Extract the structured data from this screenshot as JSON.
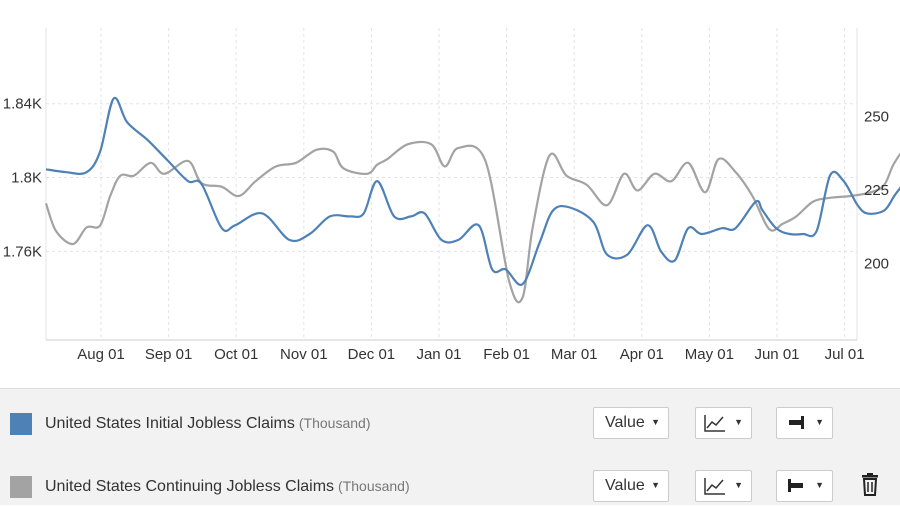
{
  "chart_data": {
    "type": "line",
    "title": "",
    "x_ticks": [
      "Aug 01",
      "Sep 01",
      "Oct 01",
      "Nov 01",
      "Dec 01",
      "Jan 01",
      "Feb 01",
      "Mar 01",
      "Apr 01",
      "May 01",
      "Jun 01",
      "Jul 01"
    ],
    "y_left": {
      "ticks": [
        1760,
        1800,
        1840
      ],
      "tick_labels": [
        "1.76K",
        "1.8K",
        "1.84K"
      ],
      "range": [
        1712,
        1881
      ]
    },
    "y_right": {
      "ticks": [
        200,
        225,
        250
      ],
      "tick_labels": [
        "200",
        "225",
        "250"
      ],
      "range": [
        174,
        280
      ]
    },
    "grid": true,
    "series": [
      {
        "name": "United States Initial Jobless Claims",
        "unit": "(Thousand)",
        "color": "#4e81b5",
        "axis": "right",
        "points": [
          [
            0,
            232
          ],
          [
            0.3,
            231
          ],
          [
            0.6,
            231
          ],
          [
            0.8,
            238
          ],
          [
            1.0,
            256
          ],
          [
            1.2,
            248
          ],
          [
            1.5,
            242
          ],
          [
            1.8,
            235
          ],
          [
            2.1,
            228
          ],
          [
            2.3,
            227
          ],
          [
            2.6,
            212
          ],
          [
            2.8,
            213
          ],
          [
            3.2,
            217
          ],
          [
            3.6,
            208
          ],
          [
            3.9,
            210
          ],
          [
            4.2,
            216
          ],
          [
            4.5,
            216
          ],
          [
            4.7,
            217
          ],
          [
            4.9,
            228
          ],
          [
            5.15,
            216
          ],
          [
            5.4,
            216
          ],
          [
            5.6,
            217
          ],
          [
            5.85,
            208
          ],
          [
            6.1,
            208
          ],
          [
            6.4,
            213
          ],
          [
            6.6,
            198
          ],
          [
            6.8,
            198
          ],
          [
            7.05,
            193
          ],
          [
            7.3,
            207
          ],
          [
            7.5,
            218
          ],
          [
            7.75,
            219
          ],
          [
            8.1,
            214
          ],
          [
            8.3,
            203
          ],
          [
            8.6,
            203
          ],
          [
            8.9,
            213
          ],
          [
            9.1,
            204
          ],
          [
            9.3,
            201
          ],
          [
            9.5,
            212
          ],
          [
            9.7,
            210
          ],
          [
            10.0,
            212
          ],
          [
            10.2,
            212
          ],
          [
            10.5,
            221
          ],
          [
            10.6,
            218
          ],
          [
            10.8,
            212
          ],
          [
            11.0,
            210
          ],
          [
            11.2,
            210
          ],
          [
            11.4,
            211
          ],
          [
            11.6,
            230
          ],
          [
            11.8,
            228
          ],
          [
            12.0,
            220
          ],
          [
            12.15,
            217
          ],
          [
            12.4,
            218
          ],
          [
            12.55,
            223
          ],
          [
            12.75,
            230
          ],
          [
            13.0,
            245
          ],
          [
            13.2,
            245
          ],
          [
            13.4,
            241
          ],
          [
            13.6,
            238
          ],
          [
            13.8,
            241
          ],
          [
            14.0,
            234
          ],
          [
            14.1,
            223
          ]
        ]
      },
      {
        "name": "United States Continuing Jobless Claims",
        "unit": "(Thousand)",
        "color": "#a3a3a3",
        "axis": "left",
        "points": [
          [
            0,
            1786
          ],
          [
            0.15,
            1771
          ],
          [
            0.4,
            1764
          ],
          [
            0.6,
            1773
          ],
          [
            0.8,
            1774
          ],
          [
            0.95,
            1790
          ],
          [
            1.1,
            1801
          ],
          [
            1.3,
            1801
          ],
          [
            1.55,
            1808
          ],
          [
            1.75,
            1802
          ],
          [
            2.1,
            1809
          ],
          [
            2.3,
            1797
          ],
          [
            2.6,
            1795
          ],
          [
            2.85,
            1790
          ],
          [
            3.1,
            1798
          ],
          [
            3.4,
            1806
          ],
          [
            3.7,
            1808
          ],
          [
            4.0,
            1815
          ],
          [
            4.25,
            1814
          ],
          [
            4.4,
            1805
          ],
          [
            4.75,
            1802
          ],
          [
            4.9,
            1807
          ],
          [
            5.05,
            1810
          ],
          [
            5.35,
            1818
          ],
          [
            5.7,
            1818
          ],
          [
            5.9,
            1806
          ],
          [
            6.1,
            1816
          ],
          [
            6.5,
            1809
          ],
          [
            6.85,
            1744
          ],
          [
            7.05,
            1735
          ],
          [
            7.2,
            1773
          ],
          [
            7.45,
            1812
          ],
          [
            7.7,
            1801
          ],
          [
            8.0,
            1796
          ],
          [
            8.3,
            1785
          ],
          [
            8.55,
            1802
          ],
          [
            8.75,
            1793
          ],
          [
            9.0,
            1802
          ],
          [
            9.25,
            1798
          ],
          [
            9.5,
            1808
          ],
          [
            9.75,
            1792
          ],
          [
            9.95,
            1810
          ],
          [
            10.2,
            1803
          ],
          [
            10.45,
            1790
          ],
          [
            10.7,
            1772
          ],
          [
            10.9,
            1775
          ],
          [
            11.1,
            1779
          ],
          [
            11.35,
            1787
          ],
          [
            11.6,
            1789
          ],
          [
            11.9,
            1790
          ],
          [
            12.2,
            1792
          ],
          [
            12.4,
            1796
          ],
          [
            12.55,
            1808
          ],
          [
            12.8,
            1820
          ],
          [
            13.0,
            1825
          ],
          [
            13.2,
            1833
          ],
          [
            13.4,
            1846
          ],
          [
            13.55,
            1855
          ],
          [
            13.75,
            1853
          ],
          [
            13.85,
            1848
          ]
        ]
      }
    ]
  },
  "legend": {
    "rows": [
      {
        "label": "United States Initial Jobless Claims",
        "unit": "(Thousand)",
        "color": "#4e81b5",
        "value_label": "Value"
      },
      {
        "label": "United States Continuing Jobless Claims",
        "unit": "(Thousand)",
        "color": "#a3a3a3",
        "value_label": "Value"
      }
    ],
    "icons": {
      "caret": "▼",
      "chart_type": "line-chart-icon",
      "axis_right": "axis-right-icon",
      "axis_left": "axis-left-icon",
      "delete": "trash-icon"
    }
  }
}
